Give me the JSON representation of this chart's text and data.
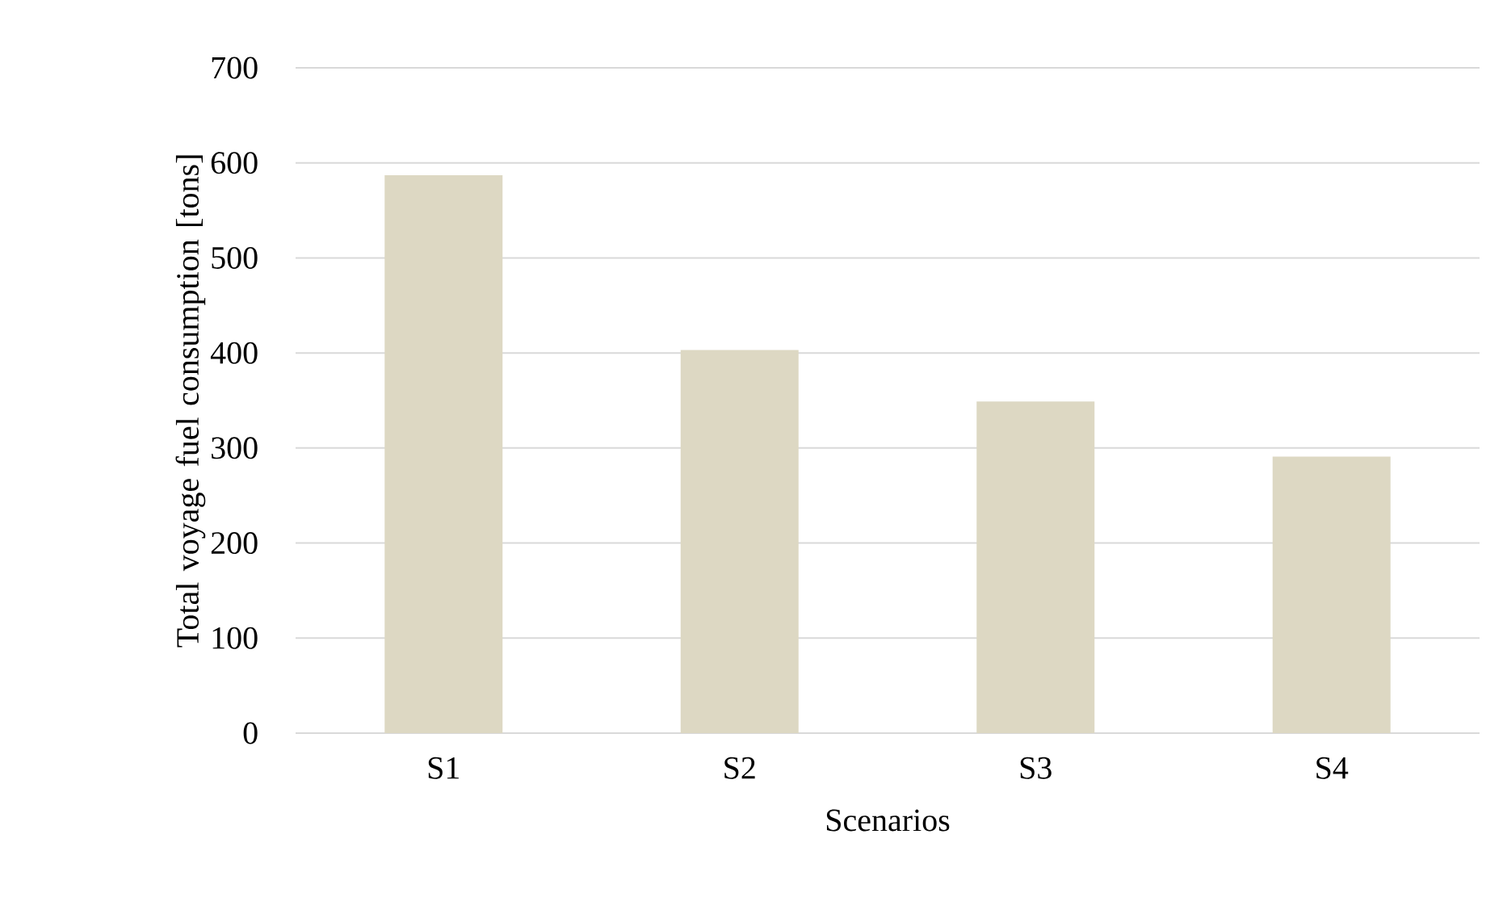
{
  "chart_data": {
    "type": "bar",
    "xlabel": "Scenarios",
    "ylabel": "Total voyage fuel consumption [tons]",
    "categories": [
      "S1",
      "S2",
      "S3",
      "S4"
    ],
    "values": [
      587,
      403,
      349,
      291
    ],
    "color": "#ddd8c3",
    "ylim": [
      0,
      700
    ],
    "yticks": [
      0,
      100,
      200,
      300,
      400,
      500,
      600,
      700
    ],
    "grid": "y"
  }
}
